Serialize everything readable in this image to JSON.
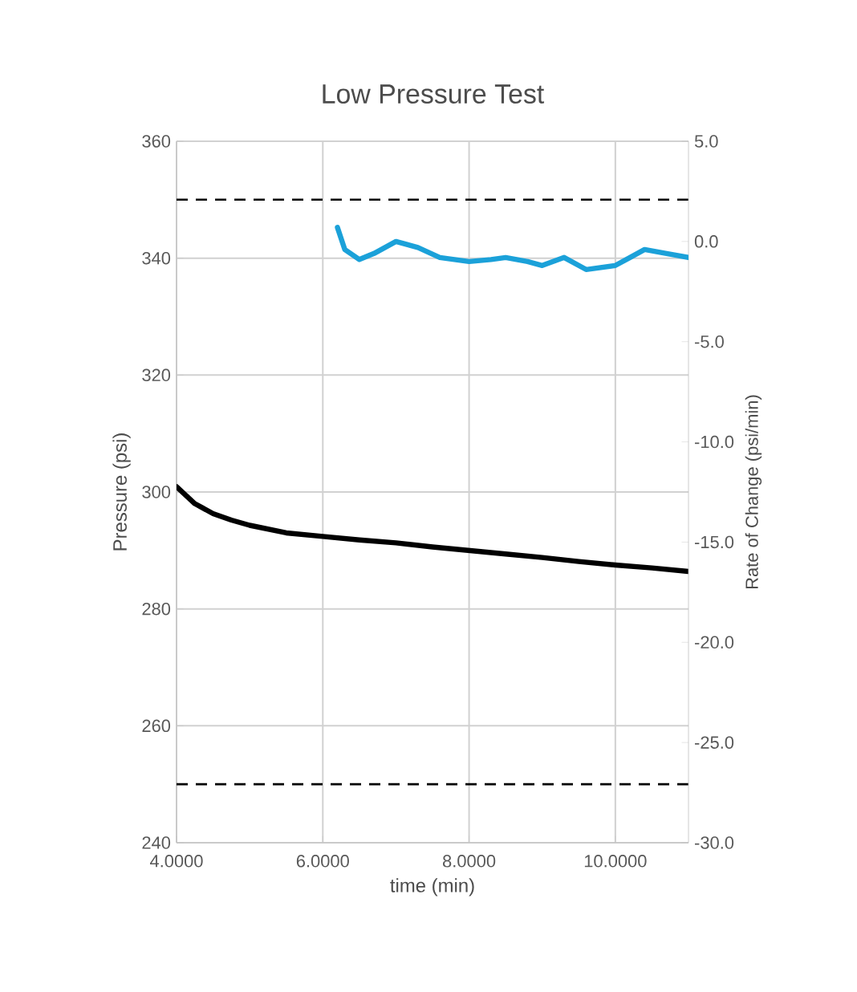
{
  "chart_data": {
    "type": "line",
    "title": "Low Pressure Test",
    "xlabel": "time (min)",
    "ylabel": "Pressure (psi)",
    "y2label": "Rate of Change (psi/min)",
    "xlim": [
      4,
      11
    ],
    "xticks": [
      {
        "value": 4,
        "label": "4.0000"
      },
      {
        "value": 6,
        "label": "6.0000"
      },
      {
        "value": 8,
        "label": "8.0000"
      },
      {
        "value": 10,
        "label": "10.0000"
      }
    ],
    "ylim": [
      240,
      360
    ],
    "yticks": [
      240,
      260,
      280,
      300,
      320,
      340,
      360
    ],
    "y2lim": [
      -30,
      5
    ],
    "y2ticks": [
      {
        "value": -30,
        "label": "-30.0"
      },
      {
        "value": -25,
        "label": "-25.0"
      },
      {
        "value": -20,
        "label": "-20.0"
      },
      {
        "value": -15,
        "label": "-15.0"
      },
      {
        "value": -10,
        "label": "-10.0"
      },
      {
        "value": -5,
        "label": "-5.0"
      },
      {
        "value": 0,
        "label": "0.0"
      },
      {
        "value": 5,
        "label": "5.0"
      }
    ],
    "grid": true,
    "marker": "none",
    "series": [
      {
        "color": "#000000",
        "x": [
          4.0,
          4.25,
          4.5,
          4.75,
          5.0,
          5.5,
          6.0,
          6.5,
          7.0,
          7.5,
          8.0,
          8.5,
          9.0,
          9.5,
          10.0,
          10.5,
          11.0
        ],
        "values": [
          300.9,
          298.0,
          296.3,
          295.2,
          294.3,
          293.0,
          292.4,
          291.8,
          291.3,
          290.6,
          290.0,
          289.4,
          288.8,
          288.1,
          287.5,
          287.0,
          286.4
        ]
      },
      {
        "color": "#1ba1d9",
        "axis": "y2",
        "x": [
          6.2,
          6.3,
          6.5,
          6.7,
          7.0,
          7.3,
          7.6,
          8.0,
          8.3,
          8.5,
          8.8,
          9.0,
          9.3,
          9.6,
          10.0,
          10.2,
          10.4,
          10.7,
          11.0
        ],
        "values": [
          0.7,
          -0.4,
          -0.9,
          -0.6,
          0.0,
          -0.3,
          -0.8,
          -1.0,
          -0.9,
          -0.8,
          -1.0,
          -1.2,
          -0.8,
          -1.4,
          -1.2,
          -0.8,
          -0.4,
          -0.6,
          -0.8
        ]
      }
    ],
    "ref_lines": [
      {
        "axis": "y",
        "value": 350,
        "line_style": "dashed",
        "color": "#000000"
      },
      {
        "axis": "y",
        "value": 250,
        "line_style": "dashed",
        "color": "#000000"
      }
    ]
  }
}
